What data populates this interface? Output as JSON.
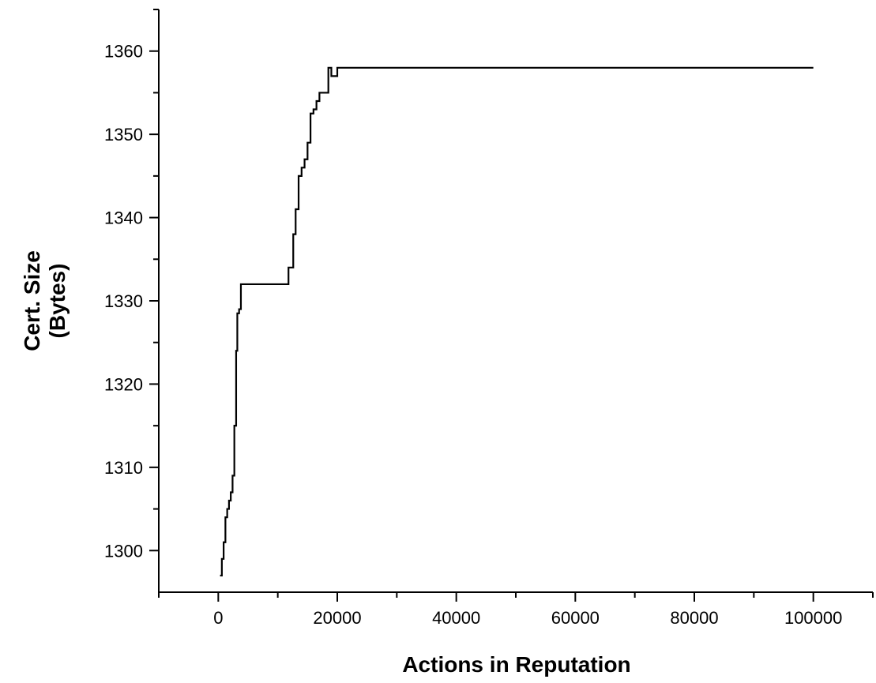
{
  "chart_data": {
    "type": "line",
    "title": "",
    "xlabel": "Actions in Reputation",
    "ylabel": [
      "Cert. Size",
      "(Bytes)"
    ],
    "xlim": [
      -10000,
      110000
    ],
    "ylim": [
      1295,
      1365
    ],
    "xticks": [
      0,
      20000,
      40000,
      60000,
      80000,
      100000
    ],
    "yticks": [
      1300,
      1310,
      1320,
      1330,
      1340,
      1350,
      1360
    ],
    "grid": false,
    "series": [
      {
        "x": [
          300,
          600,
          900,
          1200,
          1500,
          1800,
          2100,
          2400,
          2700,
          3000,
          3200,
          3500,
          3800,
          4000,
          4500,
          6000,
          8000,
          10000,
          11500,
          11800,
          12200,
          12600,
          13000,
          13500,
          14000,
          14500,
          15000,
          15500,
          16000,
          16500,
          17000,
          17500,
          18000,
          18500,
          19000,
          20000,
          30000,
          50000,
          70000,
          90000,
          100000
        ],
        "y": [
          1297,
          1299,
          1301,
          1304,
          1305,
          1306,
          1307,
          1309,
          1315,
          1324,
          1328.5,
          1329,
          1332,
          1332,
          1332,
          1332,
          1332,
          1332,
          1332,
          1334,
          1334,
          1338,
          1341,
          1345,
          1346,
          1347,
          1349,
          1352.5,
          1353,
          1354,
          1355,
          1355,
          1355,
          1358,
          1357,
          1358,
          1358,
          1358,
          1358,
          1358,
          1358
        ]
      }
    ]
  }
}
